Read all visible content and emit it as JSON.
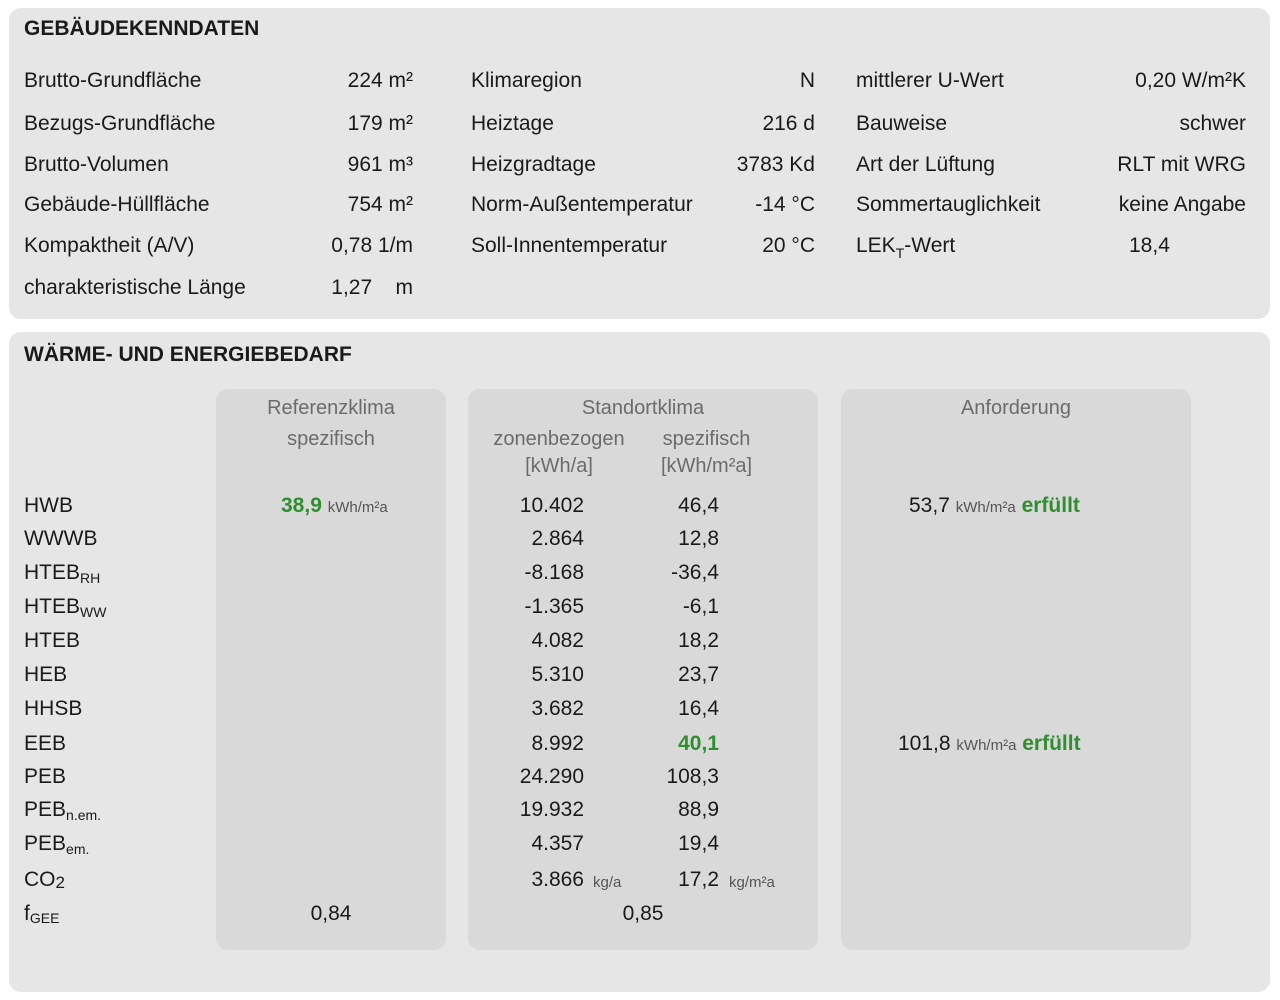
{
  "kenndaten": {
    "title": "GEBÄUDEKENNDATEN",
    "col1": [
      {
        "label": "Brutto-Grundfläche",
        "value": "224 m²"
      },
      {
        "label": "Bezugs-Grundfläche",
        "value": "179 m²"
      },
      {
        "label": "Brutto-Volumen",
        "value": "961 m³"
      },
      {
        "label": "Gebäude-Hüllfläche",
        "value": "754 m²"
      },
      {
        "label": "Kompaktheit (A/V)",
        "value": "0,78 1/m"
      },
      {
        "label": "charakteristische Länge",
        "value": "1,27    m"
      }
    ],
    "col2": [
      {
        "label": "Klimaregion",
        "value": "N"
      },
      {
        "label": "Heiztage",
        "value": "216 d"
      },
      {
        "label": "Heizgradtage",
        "value": "3783 Kd"
      },
      {
        "label": "Norm-Außentemperatur",
        "value": "-14 °C"
      },
      {
        "label": "Soll-Innentemperatur",
        "value": "20 °C"
      }
    ],
    "col3": [
      {
        "label": "mittlerer U-Wert",
        "value": "0,20 W/m²K"
      },
      {
        "label": "Bauweise",
        "value": "schwer"
      },
      {
        "label": "Art der Lüftung",
        "value": "RLT mit WRG"
      },
      {
        "label": "Sommertauglichkeit",
        "value": "keine Angabe"
      }
    ],
    "lek": {
      "label_main": "LEK",
      "label_sub": "T",
      "label_rest": "-Wert",
      "value": "18,4"
    }
  },
  "energie": {
    "title": "WÄRME- UND ENERGIEBEDARF",
    "headers": {
      "ref_line1": "Referenzklima",
      "ref_line2": "spezifisch",
      "standort": "Standortklima",
      "zonen_line1": "zonenbezogen",
      "zonen_line2": "[kWh/a]",
      "spez_line1": "spezifisch",
      "spez_line2": "[kWh/m²a]",
      "anforderung": "Anforderung"
    },
    "rows": [
      {
        "label": "HWB",
        "sub": "",
        "ref": "38,9",
        "ref_unit": "kWh/m²a",
        "zonen": "10.402",
        "zonen_unit": "",
        "spez": "46,4",
        "spez_unit": "",
        "anf": "53,7",
        "anf_unit": "kWh/m²a",
        "anf_status": "erfüllt"
      },
      {
        "label": "WWWB",
        "sub": "",
        "ref": "",
        "ref_unit": "",
        "zonen": "2.864",
        "zonen_unit": "",
        "spez": "12,8",
        "spez_unit": "",
        "anf": "",
        "anf_unit": "",
        "anf_status": ""
      },
      {
        "label": "HTEB",
        "sub": "RH",
        "ref": "",
        "ref_unit": "",
        "zonen": "-8.168",
        "zonen_unit": "",
        "spez": "-36,4",
        "spez_unit": "",
        "anf": "",
        "anf_unit": "",
        "anf_status": ""
      },
      {
        "label": "HTEB",
        "sub": "WW",
        "ref": "",
        "ref_unit": "",
        "zonen": "-1.365",
        "zonen_unit": "",
        "spez": "-6,1",
        "spez_unit": "",
        "anf": "",
        "anf_unit": "",
        "anf_status": ""
      },
      {
        "label": "HTEB",
        "sub": "",
        "ref": "",
        "ref_unit": "",
        "zonen": "4.082",
        "zonen_unit": "",
        "spez": "18,2",
        "spez_unit": "",
        "anf": "",
        "anf_unit": "",
        "anf_status": ""
      },
      {
        "label": "HEB",
        "sub": "",
        "ref": "",
        "ref_unit": "",
        "zonen": "5.310",
        "zonen_unit": "",
        "spez": "23,7",
        "spez_unit": "",
        "anf": "",
        "anf_unit": "",
        "anf_status": ""
      },
      {
        "label": "HHSB",
        "sub": "",
        "ref": "",
        "ref_unit": "",
        "zonen": "3.682",
        "zonen_unit": "",
        "spez": "16,4",
        "spez_unit": "",
        "anf": "",
        "anf_unit": "",
        "anf_status": ""
      },
      {
        "label": "EEB",
        "sub": "",
        "ref": "",
        "ref_unit": "",
        "zonen": "8.992",
        "zonen_unit": "",
        "spez": "40,1",
        "spez_unit": "",
        "anf": "101,8",
        "anf_unit": "kWh/m²a",
        "anf_status": "erfüllt"
      },
      {
        "label": "PEB",
        "sub": "",
        "ref": "",
        "ref_unit": "",
        "zonen": "24.290",
        "zonen_unit": "",
        "spez": "108,3",
        "spez_unit": "",
        "anf": "",
        "anf_unit": "",
        "anf_status": ""
      },
      {
        "label": "PEB",
        "sub": "n.em.",
        "ref": "",
        "ref_unit": "",
        "zonen": "19.932",
        "zonen_unit": "",
        "spez": "88,9",
        "spez_unit": "",
        "anf": "",
        "anf_unit": "",
        "anf_status": ""
      },
      {
        "label": "PEB",
        "sub": "em.",
        "ref": "",
        "ref_unit": "",
        "zonen": "4.357",
        "zonen_unit": "",
        "spez": "19,4",
        "spez_unit": "",
        "anf": "",
        "anf_unit": "",
        "anf_status": ""
      },
      {
        "label": "CO",
        "sub": "2",
        "ref": "",
        "ref_unit": "",
        "zonen": "3.866",
        "zonen_unit": "kg/a",
        "spez": "17,2",
        "spez_unit": "kg/m²a",
        "anf": "",
        "anf_unit": "",
        "anf_status": ""
      }
    ],
    "fgee": {
      "label": "f",
      "sub": "GEE",
      "ref": "0,84",
      "standort": "0,85"
    }
  }
}
